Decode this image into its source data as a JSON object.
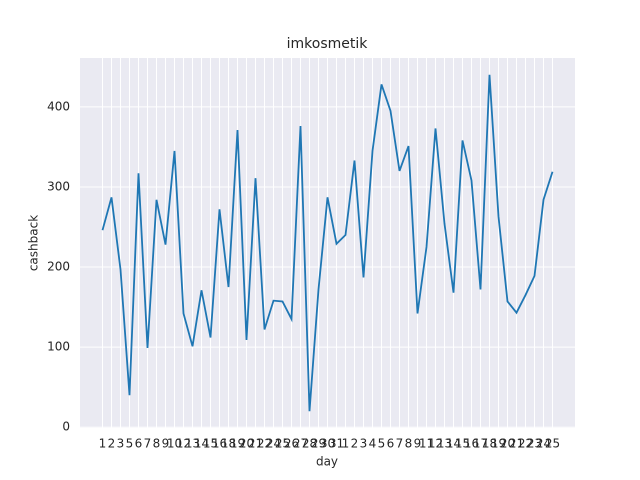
{
  "chart_data": {
    "type": "line",
    "title": "imkosmetik",
    "x_label": "day",
    "y_label": "cashback",
    "categories": [
      "1",
      "2",
      "3",
      "5",
      "6",
      "7",
      "8",
      "9",
      "10",
      "12",
      "13",
      "14",
      "15",
      "16",
      "18",
      "19",
      "20",
      "21",
      "22",
      "24",
      "25",
      "26",
      "27",
      "28",
      "29",
      "30",
      "31",
      "1",
      "2",
      "3",
      "4",
      "5",
      "6",
      "7",
      "8",
      "9",
      "11",
      "12",
      "13",
      "14",
      "15",
      "16",
      "17",
      "18",
      "19",
      "20",
      "21",
      "22",
      "23",
      "24",
      "25"
    ],
    "series": [
      {
        "name": "cashback",
        "color": "#1f77b4",
        "values": [
          246,
          287,
          197,
          40,
          317,
          99,
          284,
          228,
          345,
          142,
          101,
          171,
          112,
          272,
          175,
          371,
          109,
          311,
          122,
          158,
          157,
          135,
          376,
          20,
          172,
          287,
          229,
          240,
          333,
          187,
          345,
          428,
          395,
          320,
          351,
          142,
          225,
          373,
          254,
          168,
          358,
          308,
          172,
          440,
          263,
          157,
          143,
          165,
          189,
          284,
          319
        ]
      }
    ],
    "ylim": [
      -1,
      461
    ],
    "yticks": [
      0,
      100,
      200,
      300,
      400
    ],
    "grid": true
  }
}
